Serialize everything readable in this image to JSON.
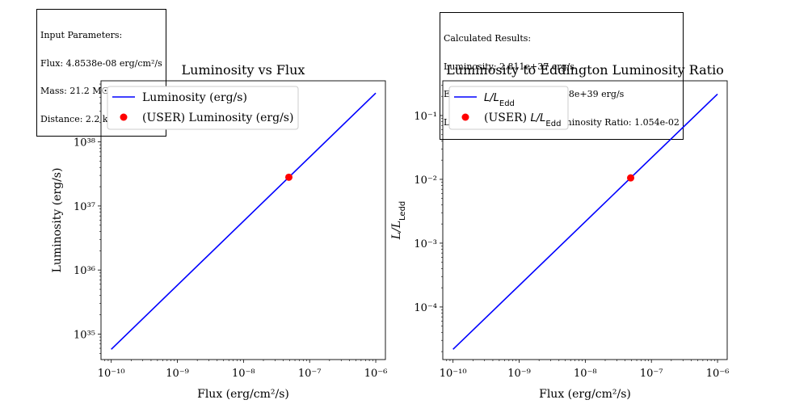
{
  "input_box": {
    "heading": "Input Parameters:",
    "flux": "Flux: 4.8538e-08 erg/cm²/s",
    "mass": "Mass: 21.2 M☉",
    "distance": "Distance: 2.2 kpc"
  },
  "results_box": {
    "heading": "Calculated Results:",
    "luminosity": "Luminosity: 2.811e+37 erg/s",
    "eddington": "Eddington Luminosity: 2.668e+39 erg/s",
    "ratio": "Luminosity / Eddington Luminosity Ratio: 1.054e-02"
  },
  "colors": {
    "line": "#0000ff",
    "point": "#ff0000"
  },
  "chart_data": [
    {
      "type": "line",
      "title": "Luminosity vs Flux",
      "xlabel": "Flux (erg/cm²/s)",
      "ylabel": "Luminosity (erg/s)",
      "xscale": "log",
      "yscale": "log",
      "xlim": [
        7e-11,
        1.4e-06
      ],
      "ylim": [
        4e+34,
        9e+38
      ],
      "xticks": [
        1e-10,
        1e-09,
        1e-08,
        1e-07,
        1e-06
      ],
      "xtick_labels": [
        "10⁻¹⁰",
        "10⁻⁹",
        "10⁻⁸",
        "10⁻⁷",
        "10⁻⁶"
      ],
      "yticks": [
        1e+35,
        1e+36,
        1e+37,
        1e+38
      ],
      "ytick_labels": [
        "10³⁵",
        "10³⁶",
        "10³⁷",
        "10³⁸"
      ],
      "legend_position": "upper-left",
      "series": [
        {
          "name": "Luminosity (erg/s)",
          "kind": "line",
          "x": [
            1e-10,
            1e-06
          ],
          "y": [
            5.79e+34,
            5.79e+38
          ]
        },
        {
          "name": "(USER) Luminosity (erg/s)",
          "kind": "point",
          "x": [
            4.8538e-08
          ],
          "y": [
            2.811e+37
          ]
        }
      ]
    },
    {
      "type": "line",
      "title": "Luminosity to Eddington Luminosity Ratio",
      "xlabel": "Flux (erg/cm²/s)",
      "ylabel": "L/L_Ledd",
      "xscale": "log",
      "yscale": "log",
      "xlim": [
        7e-11,
        1.4e-06
      ],
      "ylim": [
        1.5e-05,
        0.35
      ],
      "xticks": [
        1e-10,
        1e-09,
        1e-08,
        1e-07,
        1e-06
      ],
      "xtick_labels": [
        "10⁻¹⁰",
        "10⁻⁹",
        "10⁻⁸",
        "10⁻⁷",
        "10⁻⁶"
      ],
      "yticks": [
        0.0001,
        0.001,
        0.01,
        0.1
      ],
      "ytick_labels": [
        "10⁻⁴",
        "10⁻³",
        "10⁻²",
        "10⁻¹"
      ],
      "legend_position": "upper-left",
      "series": [
        {
          "name": "L/L_Edd",
          "kind": "line",
          "x": [
            1e-10,
            1e-06
          ],
          "y": [
            2.17e-05,
            0.217
          ]
        },
        {
          "name": "(USER) L/L_Edd",
          "kind": "point",
          "x": [
            4.8538e-08
          ],
          "y": [
            0.01054
          ]
        }
      ]
    }
  ]
}
